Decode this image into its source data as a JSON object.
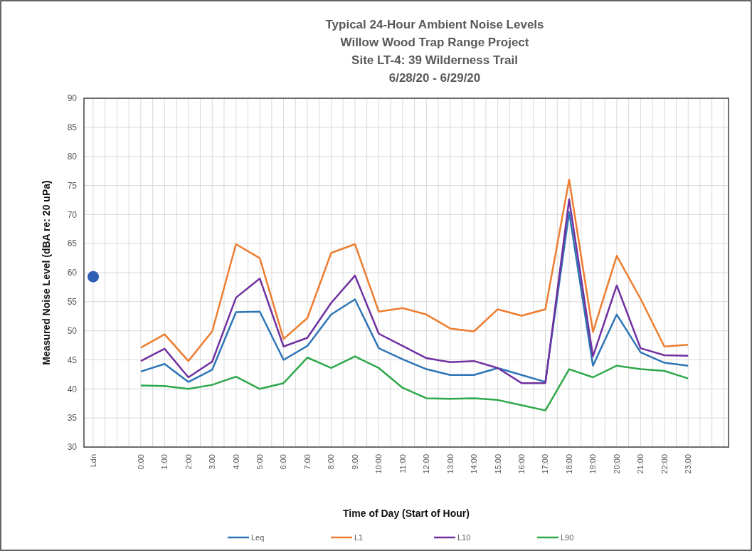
{
  "chart_data": {
    "type": "line",
    "title": "Typical 24-Hour Ambient Noise Levels",
    "subtitle": "Willow Wood Trap Range Project\nSite LT-4: 39 Wilderness Trail\n6/28/20 - 6/29/20",
    "xlabel": "Time of Day (Start of Hour)",
    "ylabel": "Measured Noise Level (dBA re: 20 uPa)",
    "categories": [
      "Ldn",
      null,
      "0:00",
      "1:00",
      "2:00",
      "3:00",
      "4:00",
      "5:00",
      "6:00",
      "7:00",
      "8:00",
      "9:00",
      "10:00",
      "11:00",
      "12:00",
      "13:00",
      "14:00",
      "15:00",
      "16:00",
      "17:00",
      "18:00",
      "19:00",
      "20:00",
      "21:00",
      "22:00",
      "23:00"
    ],
    "series": [
      {
        "type": "scatter",
        "color": "#2f5fb3",
        "marker": "circle",
        "values": [
          59.3,
          null,
          null,
          null,
          null,
          null,
          null,
          null,
          null,
          null,
          null,
          null,
          null,
          null,
          null,
          null,
          null,
          null,
          null,
          null,
          null,
          null,
          null,
          null,
          null,
          null
        ]
      },
      {
        "name": "Leq",
        "color": "#2e75b6",
        "values": [
          null,
          null,
          43.0,
          44.3,
          41.2,
          43.3,
          53.2,
          53.3,
          45.0,
          47.4,
          52.8,
          55.4,
          47.0,
          45.1,
          43.4,
          42.4,
          42.4,
          43.6,
          42.4,
          41.2,
          70.4,
          44.0,
          52.8,
          46.3,
          44.5,
          44.0
        ]
      },
      {
        "name": "L1",
        "color": "#ed7d31",
        "values": [
          null,
          null,
          47.1,
          49.4,
          44.8,
          49.9,
          64.9,
          62.5,
          48.6,
          52.2,
          63.4,
          64.9,
          53.3,
          53.9,
          52.8,
          50.4,
          49.9,
          53.7,
          52.6,
          53.7,
          76.0,
          49.8,
          62.9,
          55.5,
          47.3,
          47.6
        ]
      },
      {
        "name": "L10",
        "color": "#7030a0",
        "values": [
          null,
          null,
          44.8,
          46.9,
          42.0,
          44.7,
          55.7,
          59.0,
          47.3,
          48.8,
          54.8,
          59.5,
          49.5,
          47.4,
          45.3,
          44.6,
          44.8,
          43.6,
          41.0,
          41.0,
          72.6,
          45.6,
          57.8,
          47.0,
          45.8,
          45.7
        ]
      },
      {
        "name": "L90",
        "color": "#2ea84a",
        "values": [
          null,
          null,
          40.6,
          40.5,
          40.0,
          40.7,
          42.1,
          40.0,
          41.0,
          45.4,
          43.6,
          45.6,
          43.6,
          40.2,
          38.4,
          38.3,
          38.4,
          38.1,
          37.2,
          36.3,
          43.4,
          42.0,
          44.0,
          43.4,
          43.1,
          41.8
        ]
      }
    ],
    "ylim": [
      30,
      90
    ],
    "yticks": [
      30,
      35,
      40,
      45,
      50,
      55,
      60,
      65,
      70,
      75,
      80,
      85,
      90
    ],
    "grid": true,
    "legend": "bottom",
    "marker": "none",
    "line_style": "solid"
  }
}
